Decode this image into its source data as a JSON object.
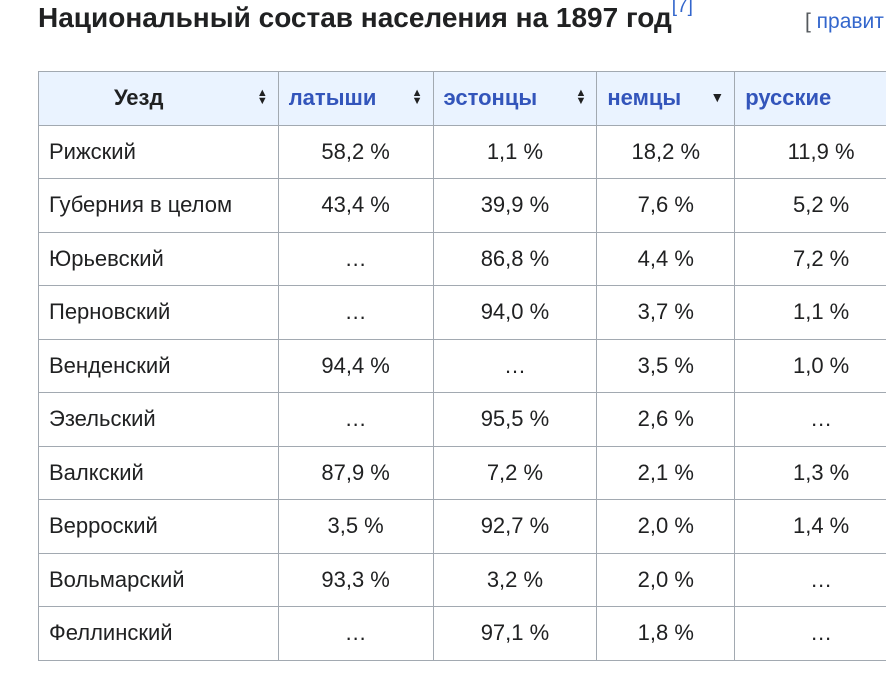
{
  "heading": {
    "title": "Национальный состав населения на 1897 год",
    "ref": "[7]",
    "edit_open": "[ ",
    "edit_label": "правит"
  },
  "table": {
    "columns": [
      {
        "label": "Уезд",
        "sort": "both"
      },
      {
        "label": "латыши",
        "sort": "both"
      },
      {
        "label": "эстонцы",
        "sort": "both"
      },
      {
        "label": "немцы",
        "sort": "descending"
      },
      {
        "label": "русские",
        "sort": "both"
      }
    ],
    "rows": [
      [
        "Рижский",
        "58,2 %",
        "1,1 %",
        "18,2 %",
        "11,9 %"
      ],
      [
        "Губерния в целом",
        "43,4 %",
        "39,9 %",
        "7,6 %",
        "5,2 %"
      ],
      [
        "Юрьевский",
        "…",
        "86,8 %",
        "4,4 %",
        "7,2 %"
      ],
      [
        "Перновский",
        "…",
        "94,0 %",
        "3,7 %",
        "1,1 %"
      ],
      [
        "Венденский",
        "94,4 %",
        "…",
        "3,5 %",
        "1,0 %"
      ],
      [
        "Эзельский",
        "…",
        "95,5 %",
        "2,6 %",
        "…"
      ],
      [
        "Валкский",
        "87,9 %",
        "7,2 %",
        "2,1 %",
        "1,3 %"
      ],
      [
        "Верроский",
        "3,5 %",
        "92,7 %",
        "2,0 %",
        "1,4 %"
      ],
      [
        "Вольмарский",
        "93,3 %",
        "3,2 %",
        "2,0 %",
        "…"
      ],
      [
        "Феллинский",
        "…",
        "97,1 %",
        "1,8 %",
        "…"
      ]
    ]
  },
  "colors": {
    "header_bg": "#eaf3ff",
    "link": "#3355bb",
    "border": "#a2a9b1"
  }
}
